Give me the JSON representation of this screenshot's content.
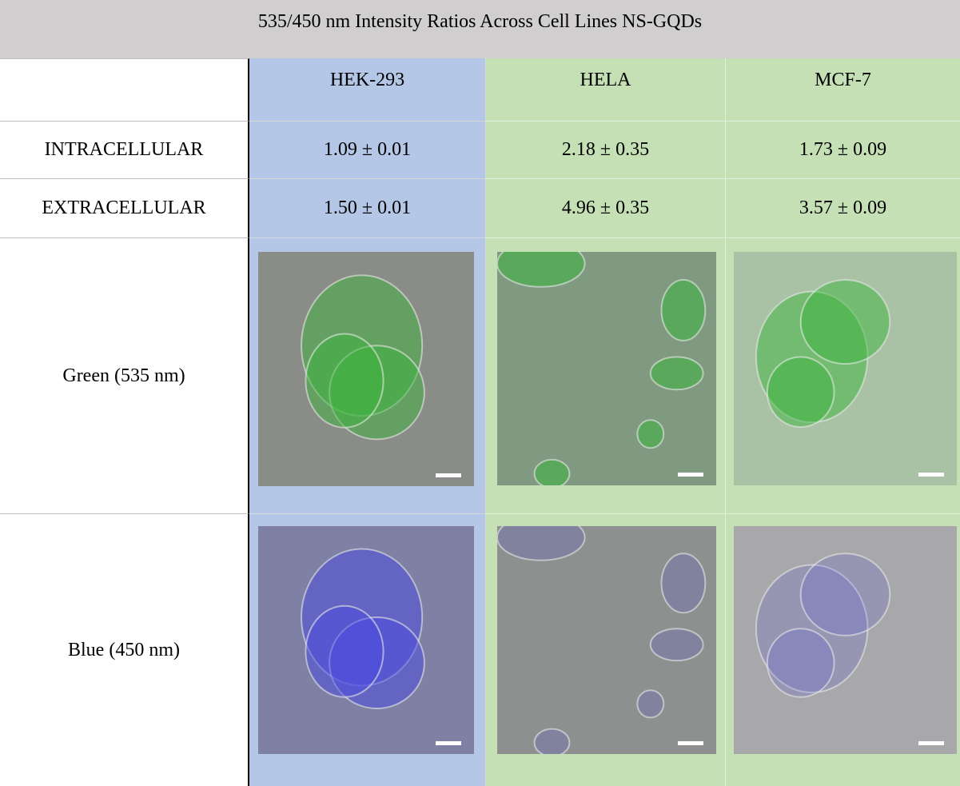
{
  "header": {
    "title": "535/450 nm Intensity Ratios Across Cell Lines NS-GQDs"
  },
  "table": {
    "columns": [
      "HEK-293",
      "HELA",
      "MCF-7"
    ],
    "rows": [
      {
        "label": "INTRACELLULAR",
        "values": [
          "1.09 ± 0.01",
          "2.18 ± 0.35",
          "1.73 ± 0.09"
        ]
      },
      {
        "label": "EXTRACELLULAR",
        "values": [
          "1.50 ± 0.01",
          "4.96 ± 0.35",
          "3.57 ± 0.09"
        ]
      }
    ],
    "image_rows": [
      {
        "label": "Green (535 nm)"
      },
      {
        "label": "Blue (450 nm)"
      }
    ]
  }
}
